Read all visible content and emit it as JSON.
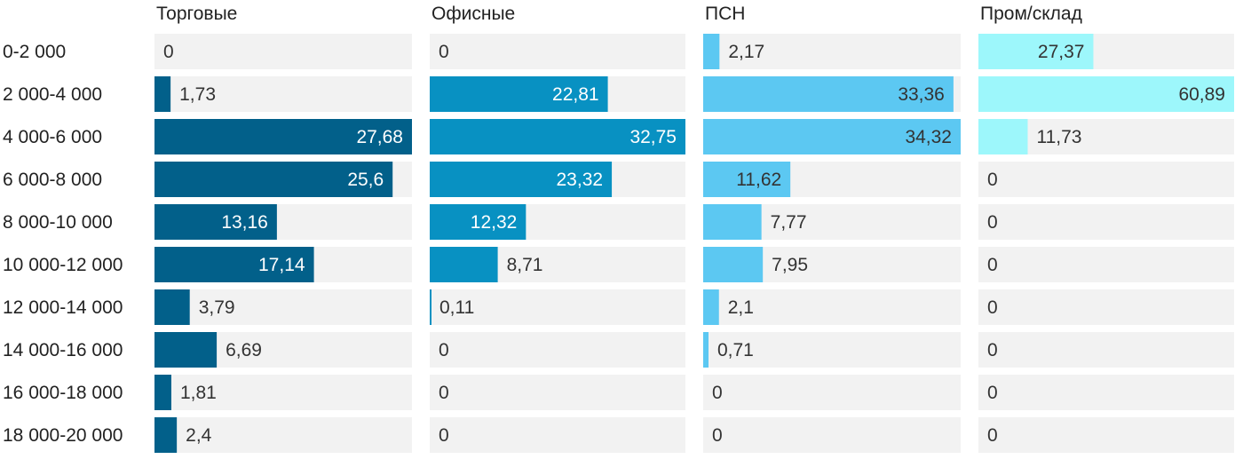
{
  "chart_data": {
    "type": "bar",
    "orientation": "horizontal",
    "layout": "small-multiples",
    "categories": [
      "0-2 000",
      "2 000-4 000",
      "4 000-6 000",
      "6 000-8 000",
      "8 000-10 000",
      "10 000-12 000",
      "12 000-14 000",
      "14 000-16 000",
      "16 000-18 000",
      "18 000-20 000"
    ],
    "series": [
      {
        "name": "Торговые",
        "color": "#02608a",
        "values": [
          0,
          1.73,
          27.68,
          25.6,
          13.16,
          17.14,
          3.79,
          6.69,
          1.81,
          2.4
        ],
        "labels": [
          "0",
          "1,73",
          "27,68",
          "25,6",
          "13,16",
          "17,14",
          "3,79",
          "6,69",
          "1,81",
          "2,4"
        ]
      },
      {
        "name": "Офисные",
        "color": "#0891c2",
        "values": [
          0,
          22.81,
          32.75,
          23.32,
          12.32,
          8.71,
          0.11,
          0,
          0,
          0
        ],
        "labels": [
          "0",
          "22,81",
          "32,75",
          "23,32",
          "12,32",
          "8,71",
          "0,11",
          "0",
          "0",
          "0"
        ]
      },
      {
        "name": "ПСН",
        "color": "#5cc8f2",
        "values": [
          2.17,
          33.36,
          34.32,
          11.62,
          7.77,
          7.95,
          2.1,
          0.71,
          0,
          0
        ],
        "labels": [
          "2,17",
          "33,36",
          "34,32",
          "11,62",
          "7,77",
          "7,95",
          "2,1",
          "0,71",
          "0",
          "0"
        ]
      },
      {
        "name": "Пром/склад",
        "color": "#9df7fb",
        "values": [
          27.37,
          60.89,
          11.73,
          0,
          0,
          0,
          0,
          0,
          0,
          0
        ],
        "labels": [
          "27,37",
          "60,89",
          "11,73",
          "0",
          "0",
          "0",
          "0",
          "0",
          "0",
          "0"
        ]
      }
    ],
    "title": "",
    "xlabel": "",
    "ylabel": "",
    "grid": false,
    "legend": "none"
  }
}
